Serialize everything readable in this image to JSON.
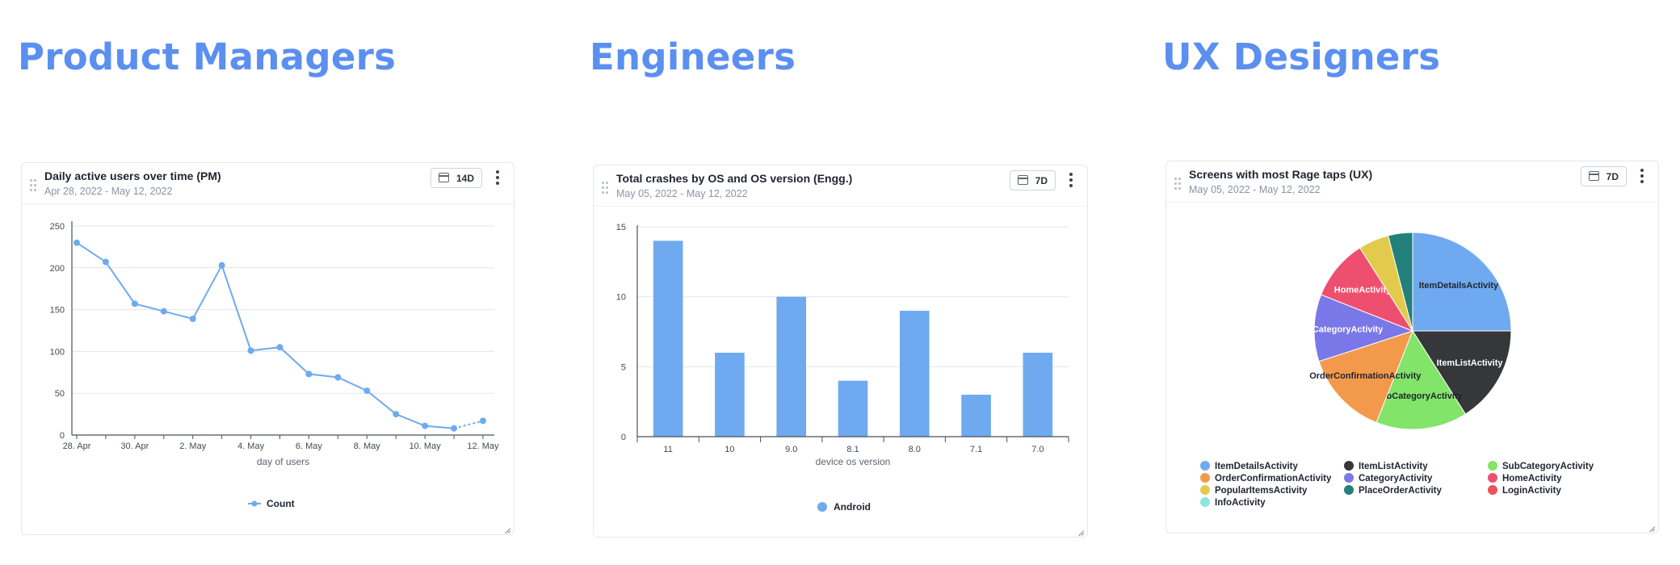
{
  "sections": {
    "pm": "Product Managers",
    "eng": "Engineers",
    "ux": "UX Designers"
  },
  "colors": {
    "heading": "#5b8ff0",
    "line": "#6faaf0",
    "bar": "#6faaf0"
  },
  "cards": {
    "pm": {
      "title": "Daily active users over time (PM)",
      "subtitle": "Apr 28, 2022 - May 12, 2022",
      "range": "14D"
    },
    "eng": {
      "title": "Total crashes by OS and OS version (Engg.)",
      "subtitle": "May 05, 2022 - May 12, 2022",
      "range": "7D"
    },
    "ux": {
      "title": "Screens with most Rage taps (UX)",
      "subtitle": "May 05, 2022 - May 12, 2022",
      "range": "7D"
    }
  },
  "chart_data": [
    {
      "type": "line",
      "x": [
        "28. Apr",
        "29. Apr",
        "30. Apr",
        "1. May",
        "2. May",
        "3. May",
        "4. May",
        "5. May",
        "6. May",
        "7. May",
        "8. May",
        "9. May",
        "10. May",
        "11. May",
        "12. May"
      ],
      "x_tick_labels": [
        "28. Apr",
        "30. Apr",
        "2. May",
        "4. May",
        "6. May",
        "8. May",
        "10. May",
        "12. May"
      ],
      "series": [
        {
          "name": "Count",
          "values": [
            230,
            207,
            157,
            148,
            139,
            203,
            101,
            105,
            73,
            69,
            53,
            25,
            11,
            8,
            17
          ],
          "color": "#6faaf0"
        }
      ],
      "xlabel": "day of users",
      "ylabel": "",
      "ylim": [
        0,
        250
      ],
      "y_ticks": [
        0,
        50,
        100,
        150,
        200,
        250
      ],
      "grid": true,
      "legend": "bottom-center",
      "last_segment_dashed": true
    },
    {
      "type": "bar",
      "categories": [
        "11",
        "10",
        "9.0",
        "8.1",
        "8.0",
        "7.1",
        "7.0"
      ],
      "series": [
        {
          "name": "Android",
          "values": [
            14,
            6,
            10,
            4,
            9,
            3,
            6
          ],
          "color": "#6faaf0"
        }
      ],
      "xlabel": "device os version",
      "ylabel": "",
      "ylim": [
        0,
        15
      ],
      "y_ticks": [
        0,
        5,
        10,
        15
      ],
      "grid": true,
      "legend": "bottom-center"
    },
    {
      "type": "pie",
      "slices": [
        {
          "label": "ItemDetailsActivity",
          "value": 25,
          "color": "#6faaf0",
          "show_label": true,
          "label_color": "#1f2430"
        },
        {
          "label": "ItemListActivity",
          "value": 16,
          "color": "#36373b",
          "show_label": true,
          "label_color": "#ffffff"
        },
        {
          "label": "SubCategoryActivity",
          "value": 15,
          "color": "#82e468",
          "show_label": true,
          "label_color": "#1f2430"
        },
        {
          "label": "OrderConfirmationActivity",
          "value": 14,
          "color": "#f3994c",
          "show_label": true,
          "label_color": "#1f2430"
        },
        {
          "label": "CategoryActivity",
          "value": 11,
          "color": "#7a78e8",
          "show_label": true,
          "label_color": "#ffffff"
        },
        {
          "label": "HomeActivity",
          "value": 10,
          "color": "#ef4f6e",
          "show_label": true,
          "label_color": "#ffffff"
        },
        {
          "label": "PopularItemsActivity",
          "value": 5,
          "color": "#e2cb4c",
          "show_label": false,
          "label_color": "#1f2430"
        },
        {
          "label": "PlaceOrderActivity",
          "value": 4,
          "color": "#23807c",
          "show_label": false,
          "label_color": "#ffffff"
        },
        {
          "label": "LoginActivity",
          "value": 0,
          "color": "#e8515e",
          "show_label": false,
          "label_color": "#ffffff"
        },
        {
          "label": "InfoActivity",
          "value": 0,
          "color": "#8ee5e0",
          "show_label": false,
          "label_color": "#1f2430"
        }
      ],
      "legend_order": [
        "ItemDetailsActivity",
        "ItemListActivity",
        "SubCategoryActivity",
        "OrderConfirmationActivity",
        "CategoryActivity",
        "HomeActivity",
        "PopularItemsActivity",
        "PlaceOrderActivity",
        "LoginActivity",
        "InfoActivity"
      ],
      "legend": "bottom"
    }
  ]
}
